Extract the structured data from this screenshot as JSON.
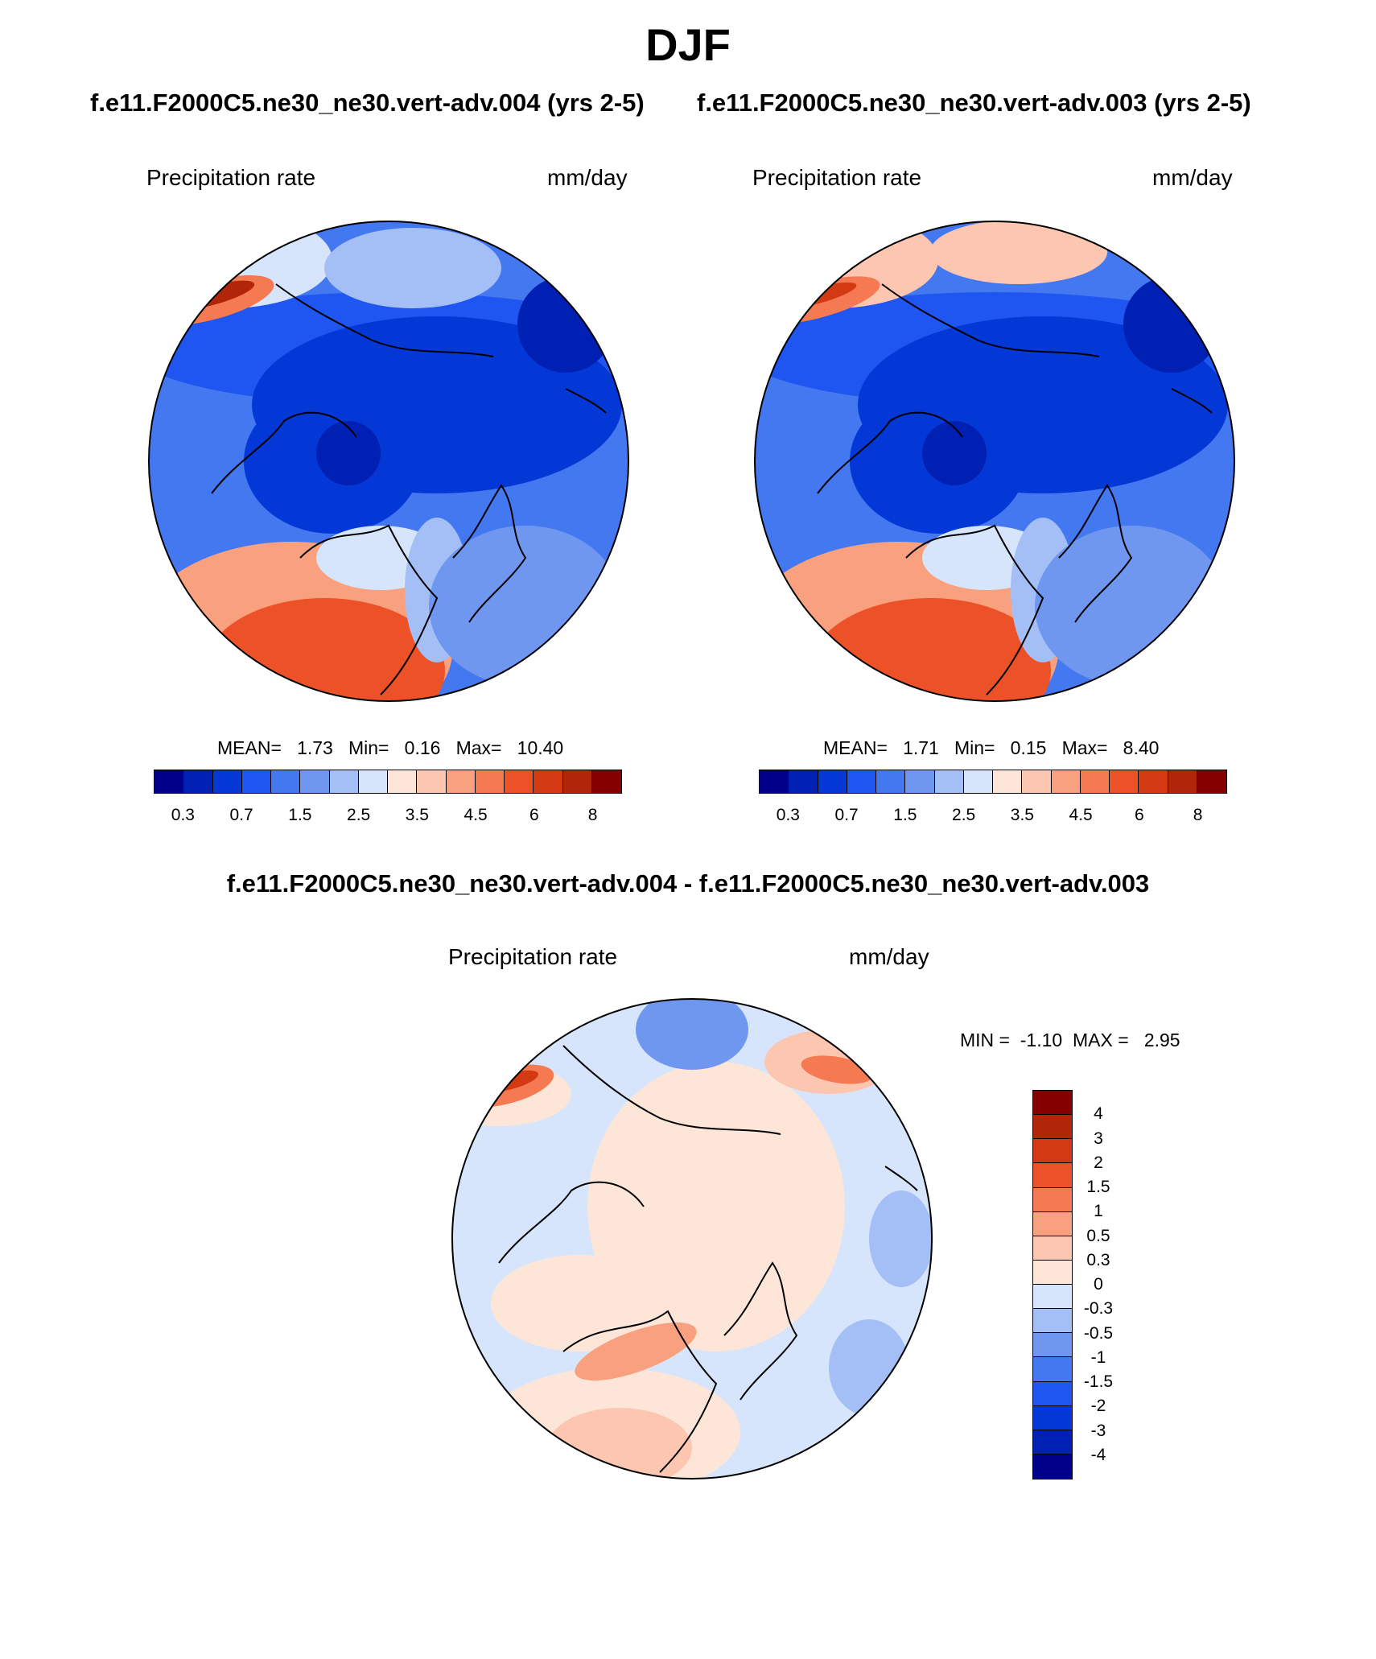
{
  "title": "DJF",
  "panels": {
    "case1": "f.e11.F2000C5.ne30_ne30.vert-adv.004 (yrs 2-5)",
    "case2": "f.e11.F2000C5.ne30_ne30.vert-adv.003 (yrs 2-5)",
    "variable": "Precipitation rate",
    "units": "mm/day",
    "stats1": {
      "mean_label": "MEAN=",
      "mean": "1.73",
      "min_label": "Min=",
      "min": "0.16",
      "max_label": "Max=",
      "max": "10.40"
    },
    "stats2": {
      "mean_label": "MEAN=",
      "mean": "1.71",
      "min_label": "Min=",
      "min": "0.15",
      "max_label": "Max=",
      "max": "8.40"
    },
    "ticks": [
      "0.3",
      "0.7",
      "1.5",
      "2.5",
      "3.5",
      "4.5",
      "6",
      "8"
    ]
  },
  "diff": {
    "title": "f.e11.F2000C5.ne30_ne30.vert-adv.004 - f.e11.F2000C5.ne30_ne30.vert-adv.003",
    "variable": "Precipitation rate",
    "units": "mm/day",
    "min_label": "MIN =",
    "min": "-1.10",
    "max_label": "MAX =",
    "max": "2.95",
    "ticks": [
      "4",
      "3",
      "2",
      "1.5",
      "1",
      "0.5",
      "0.3",
      "0",
      "-0.3",
      "-0.5",
      "-1",
      "-1.5",
      "-2",
      "-3",
      "-4"
    ]
  },
  "colors": {
    "absolute": [
      "#00008b",
      "#0020b4",
      "#0438d6",
      "#1f55f0",
      "#4478f0",
      "#6f97f0",
      "#a3bff5",
      "#d6e5fb",
      "#fde6d8",
      "#fcc6b0",
      "#f9a07e",
      "#f57a52",
      "#ec5128",
      "#d33a14",
      "#b12508",
      "#850000"
    ],
    "difference": [
      "#850000",
      "#b12508",
      "#d33a14",
      "#ec5128",
      "#f57a52",
      "#f9a07e",
      "#fcc6b0",
      "#fde6d8",
      "#d6e5fb",
      "#a3bff5",
      "#6f97f0",
      "#4478f0",
      "#1f55f0",
      "#0438d6",
      "#0020b4",
      "#00008b"
    ]
  }
}
